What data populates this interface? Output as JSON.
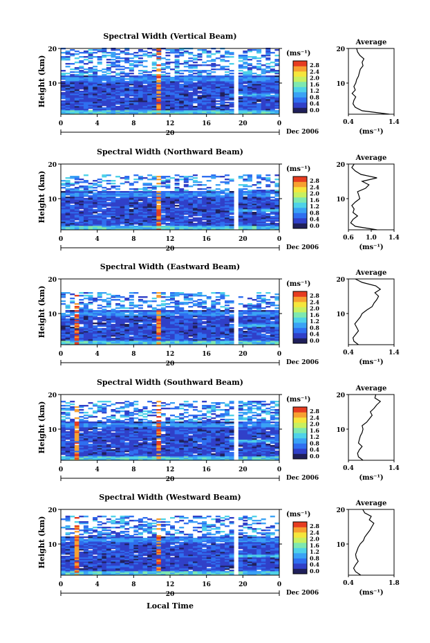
{
  "figure": {
    "xlabel": "Local Time",
    "date_label": "Dec 2006",
    "day_label": "20",
    "colorbar_unit": "(ms⁻¹)",
    "colorbar_ticks": [
      "2.8",
      "2.4",
      "2.0",
      "1.6",
      "1.2",
      "0.8",
      "0.4",
      "0.0"
    ],
    "colorbar_range": [
      0.0,
      3.0
    ],
    "colormap": [
      "#20205a",
      "#3040c8",
      "#2f6ff0",
      "#3aa2f5",
      "#4fd2e8",
      "#7ee8b0",
      "#c8f060",
      "#f5e63c",
      "#f7a030",
      "#e63c20"
    ],
    "avg_xlabel": "(ms⁻¹)",
    "avg_title": "Average"
  },
  "chart_data": [
    {
      "type": "heatmap",
      "title": "Spectral Width (Vertical Beam)",
      "ylabel": "Height (km)",
      "xlim": [
        0,
        24
      ],
      "ylim": [
        1,
        20
      ],
      "xticks": [
        "0",
        "4",
        "8",
        "12",
        "16",
        "20",
        "0"
      ],
      "yticks": [
        "10",
        "20"
      ],
      "tropopause_km": 12,
      "top_km": 20,
      "gap_hour": 18.8,
      "spike_hours": [
        10.7
      ],
      "profile": {
        "xlim": [
          0.4,
          1.4
        ],
        "xticks": [
          "0.4",
          "1.4"
        ],
        "ylim": [
          1,
          20
        ],
        "yticks": [
          "10",
          "20"
        ],
        "heights": [
          1,
          2,
          3,
          4,
          5,
          6,
          7,
          8,
          9,
          10,
          11,
          12,
          13,
          14,
          15,
          16,
          17,
          18,
          19,
          20
        ],
        "values": [
          1.3,
          0.7,
          0.55,
          0.5,
          0.52,
          0.56,
          0.48,
          0.55,
          0.52,
          0.56,
          0.58,
          0.62,
          0.64,
          0.66,
          0.72,
          0.7,
          0.74,
          0.65,
          0.6,
          0.58
        ]
      }
    },
    {
      "type": "heatmap",
      "title": "Spectral Width (Northward Beam)",
      "ylabel": "Height (km)",
      "xlim": [
        0,
        24
      ],
      "ylim": [
        1,
        20
      ],
      "xticks": [
        "0",
        "4",
        "8",
        "12",
        "16",
        "20",
        "0"
      ],
      "yticks": [
        "10",
        "20"
      ],
      "tropopause_km": 12,
      "top_km": 17,
      "gap_hour": 18.8,
      "spike_hours": [
        10.7
      ],
      "profile": {
        "xlim": [
          0.6,
          1.4
        ],
        "xticks": [
          "0.6",
          "1.0",
          "1.4"
        ],
        "ylim": [
          1,
          20
        ],
        "yticks": [
          "10",
          "20"
        ],
        "heights": [
          1,
          2,
          3,
          4,
          5,
          6,
          7,
          8,
          9,
          10,
          11,
          12,
          13,
          14,
          15,
          16,
          17,
          18,
          19,
          20
        ],
        "values": [
          1.1,
          0.72,
          0.64,
          0.68,
          0.76,
          0.68,
          0.7,
          0.66,
          0.72,
          0.8,
          0.78,
          0.76,
          0.9,
          0.96,
          0.84,
          1.1,
          0.82,
          0.72,
          0.66,
          0.7
        ]
      }
    },
    {
      "type": "heatmap",
      "title": "Spectral Width (Eastward Beam)",
      "ylabel": "Height (km)",
      "xlim": [
        0,
        24
      ],
      "ylim": [
        1,
        20
      ],
      "xticks": [
        "0",
        "4",
        "8",
        "12",
        "16",
        "20",
        "0"
      ],
      "yticks": [
        "10",
        "20"
      ],
      "tropopause_km": 11,
      "top_km": 16,
      "gap_hour": 18.8,
      "spike_hours": [
        1.3,
        10.7
      ],
      "profile": {
        "xlim": [
          0.4,
          1.4
        ],
        "xticks": [
          "0.4",
          "1.4"
        ],
        "ylim": [
          1,
          20
        ],
        "yticks": [
          "10",
          "20"
        ],
        "heights": [
          1,
          2,
          3,
          4,
          5,
          6,
          7,
          8,
          9,
          10,
          11,
          12,
          13,
          14,
          15,
          16,
          17,
          18,
          19,
          20
        ],
        "values": [
          0.62,
          0.52,
          0.5,
          0.56,
          0.62,
          0.58,
          0.54,
          0.6,
          0.66,
          0.7,
          0.8,
          0.92,
          0.96,
          1.02,
          1.06,
          0.98,
          1.1,
          1.0,
          0.7,
          0.55
        ]
      }
    },
    {
      "type": "heatmap",
      "title": "Spectral Width (Southward Beam)",
      "ylabel": "Height (km)",
      "xlim": [
        0,
        24
      ],
      "ylim": [
        1,
        20
      ],
      "xticks": [
        "0",
        "4",
        "8",
        "12",
        "16",
        "20",
        "0"
      ],
      "yticks": [
        "10",
        "20"
      ],
      "tropopause_km": 12,
      "top_km": 18,
      "gap_hour": 18.8,
      "spike_hours": [
        1.3,
        10.7
      ],
      "profile": {
        "xlim": [
          0.4,
          1.4
        ],
        "xticks": [
          "0.4",
          "1.4"
        ],
        "ylim": [
          1,
          20
        ],
        "yticks": [
          "10",
          "20"
        ],
        "heights": [
          1,
          2,
          3,
          4,
          5,
          6,
          7,
          8,
          9,
          10,
          11,
          12,
          13,
          14,
          15,
          16,
          17,
          18,
          19,
          20
        ],
        "values": [
          0.72,
          0.62,
          0.6,
          0.64,
          0.7,
          0.62,
          0.64,
          0.66,
          0.7,
          0.72,
          0.7,
          0.8,
          0.86,
          0.92,
          0.88,
          0.96,
          1.02,
          1.1,
          0.98,
          1.0
        ]
      }
    },
    {
      "type": "heatmap",
      "title": "Spectral Width (Westward Beam)",
      "ylabel": "Height (km)",
      "xlim": [
        0,
        24
      ],
      "ylim": [
        1,
        20
      ],
      "xticks": [
        "0",
        "4",
        "8",
        "12",
        "16",
        "20",
        "0"
      ],
      "yticks": [
        "10",
        "20"
      ],
      "tropopause_km": 12,
      "top_km": 18,
      "gap_hour": 18.8,
      "spike_hours": [
        1.3,
        10.7
      ],
      "profile": {
        "xlim": [
          0.4,
          1.8
        ],
        "xticks": [
          "0.4",
          "1.8"
        ],
        "ylim": [
          1,
          20
        ],
        "yticks": [
          "10",
          "20"
        ],
        "heights": [
          1,
          2,
          3,
          4,
          5,
          6,
          7,
          8,
          9,
          10,
          11,
          12,
          13,
          14,
          15,
          16,
          17,
          18,
          19,
          20
        ],
        "values": [
          0.78,
          0.62,
          0.56,
          0.62,
          0.7,
          0.64,
          0.62,
          0.66,
          0.7,
          0.76,
          0.86,
          0.9,
          0.98,
          1.06,
          1.12,
          1.18,
          1.04,
          1.1,
          0.9,
          0.84
        ]
      }
    }
  ]
}
